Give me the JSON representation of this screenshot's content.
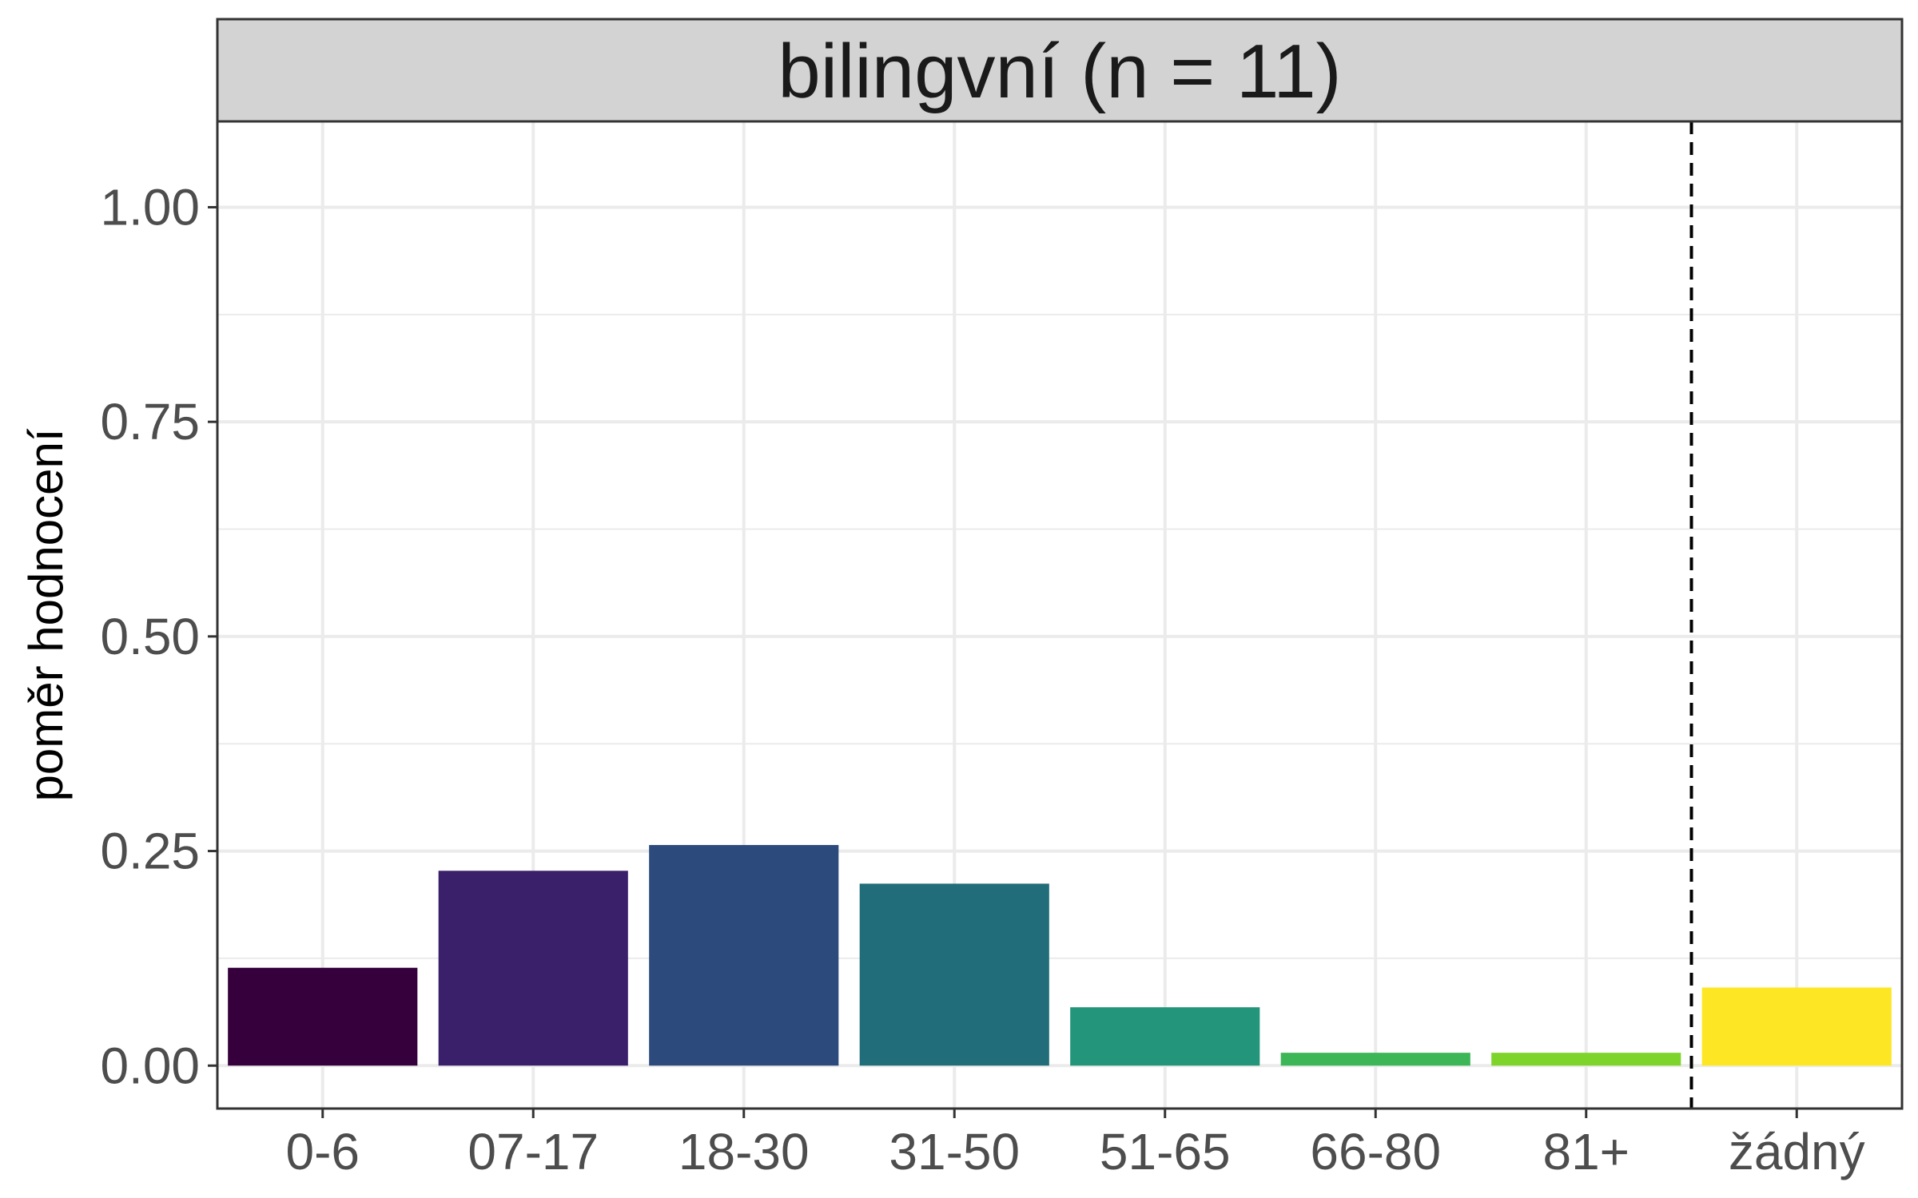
{
  "chart_data": {
    "type": "bar",
    "title": "bilingvní (n = 11)",
    "xlabel": "",
    "ylabel": "poměr hodnocení",
    "categories": [
      "0-6",
      "07-17",
      "18-30",
      "31-50",
      "51-65",
      "66-80",
      "81+",
      "žádný"
    ],
    "values": [
      0.114,
      0.227,
      0.257,
      0.212,
      0.068,
      0.015,
      0.015,
      0.091
    ],
    "colors": [
      "#35003c",
      "#3a1f6b",
      "#2c4a7c",
      "#216e7a",
      "#22957a",
      "#3cb657",
      "#7ed42a",
      "#fde725"
    ],
    "ylim": [
      -0.05,
      1.1
    ],
    "yticks": [
      0,
      0.25,
      0.5,
      0.75,
      1.0
    ],
    "ytick_labels": [
      "0.00",
      "0.25",
      "0.50",
      "0.75",
      "1.00"
    ],
    "yminor": [
      0.125,
      0.375,
      0.625,
      0.875
    ],
    "grid": true,
    "legend": "none",
    "reference_line": {
      "between": [
        "81+",
        "žádný"
      ],
      "style": "dashed",
      "color": "#000000"
    },
    "strip_color": "#d3d3d3",
    "grid_color": "#ebebeb"
  }
}
